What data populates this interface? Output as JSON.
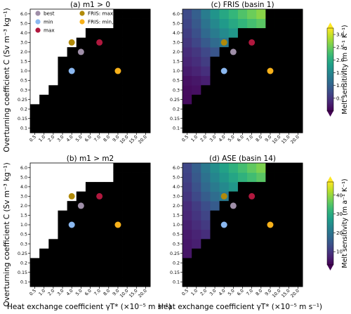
{
  "figure": {
    "shared_ylabel": "Overturning coefficient C (Sv m⁻³ kg⁻¹)",
    "shared_xlabel": "Heat exchange coefficient γT* (×10⁻⁵ m s⁻¹)"
  },
  "chart_data": [
    {
      "id": "a",
      "type": "heatmap",
      "title": "(a) m1 > 0",
      "x_ticks": [
        "0.5",
        "1.0",
        "2.0",
        "3.0",
        "4.0",
        "5.0",
        "6.0",
        "7.0",
        "8.0",
        "9.0",
        "10.0",
        "15.0",
        "20.0"
      ],
      "y_ticks": [
        "0.1",
        "0.15",
        "0.2",
        "0.25",
        "0.3",
        "0.5",
        "1.0",
        "1.5",
        "2.0",
        "3.0",
        "4.0",
        "5.0",
        "6.0"
      ],
      "mask_row_start": [
        3,
        4,
        5,
        8,
        9,
        10,
        11,
        11,
        11,
        13,
        13,
        13,
        13
      ],
      "mask_color": "#000000",
      "legend": [
        {
          "label": "best",
          "color": "#9f8fa8"
        },
        {
          "label": "min",
          "color": "#8bb8f0"
        },
        {
          "label": "max",
          "color": "#b0183e"
        },
        {
          "label": "FRIS: max, ASE: min",
          "color": "#b08a0a"
        },
        {
          "label": "FRIS: min, ASE: max",
          "color": "#f7b11a"
        }
      ],
      "points": [
        {
          "name": "best",
          "x": "5.0",
          "y": "2.0",
          "color": "#9f8fa8"
        },
        {
          "name": "min",
          "x": "4.0",
          "y": "1.0",
          "color": "#8bb8f0"
        },
        {
          "name": "max",
          "x": "7.0",
          "y": "3.0",
          "color": "#b0183e"
        },
        {
          "name": "FRIS: max, ASE: min",
          "x": "4.0",
          "y": "3.0",
          "color": "#b08a0a"
        },
        {
          "name": "FRIS: min, ASE: max",
          "x": "9.0",
          "y": "1.0",
          "color": "#f7b11a"
        }
      ]
    },
    {
      "id": "b",
      "type": "heatmap",
      "title": "(b) m1 > m2",
      "x_ticks": [
        "0.5",
        "1.0",
        "2.0",
        "3.0",
        "4.0",
        "5.0",
        "6.0",
        "7.0",
        "8.0",
        "9.0",
        "10.0",
        "15.0",
        "20.0"
      ],
      "y_ticks": [
        "0.1",
        "0.15",
        "0.2",
        "0.25",
        "0.3",
        "0.5",
        "1.0",
        "1.5",
        "2.0",
        "3.0",
        "4.0",
        "5.0",
        "6.0"
      ],
      "mask_row_start": [
        3,
        4,
        5,
        8,
        9,
        10,
        11,
        11,
        11,
        13,
        13,
        13,
        13
      ],
      "mask_color": "#000000",
      "points": [
        {
          "name": "best",
          "x": "5.0",
          "y": "2.0",
          "color": "#9f8fa8"
        },
        {
          "name": "min",
          "x": "4.0",
          "y": "1.0",
          "color": "#8bb8f0"
        },
        {
          "name": "max",
          "x": "7.0",
          "y": "3.0",
          "color": "#b0183e"
        },
        {
          "name": "FRIS: max, ASE: min",
          "x": "4.0",
          "y": "3.0",
          "color": "#b08a0a"
        },
        {
          "name": "FRIS: min, ASE: max",
          "x": "9.0",
          "y": "1.0",
          "color": "#f7b11a"
        }
      ]
    },
    {
      "id": "c",
      "type": "heatmap",
      "title": "(c) FRIS (basin 1)",
      "x_ticks": [
        "0.5",
        "1.0",
        "2.0",
        "3.0",
        "4.0",
        "5.0",
        "6.0",
        "7.0",
        "8.0",
        "9.0",
        "10.0",
        "15.0",
        "20.0"
      ],
      "y_ticks": [
        "0.1",
        "0.15",
        "0.2",
        "0.25",
        "0.3",
        "0.5",
        "1.0",
        "1.5",
        "2.0",
        "3.0",
        "4.0",
        "5.0",
        "6.0"
      ],
      "colorbar": {
        "label": "Melt sensitivity (m a⁻¹ K⁻¹)",
        "ticks": [
          0.5,
          1.0,
          1.5,
          2.0,
          2.5,
          3.0
        ],
        "min": 0,
        "max": 3.25
      },
      "values": [
        [
          0.06,
          0.08,
          0.1,
          0.12,
          0.13,
          0.14,
          0.15,
          0.16,
          0.17,
          0.18,
          0.19,
          0.22,
          0.25
        ],
        [
          0.07,
          0.09,
          0.12,
          0.14,
          0.16,
          0.17,
          0.18,
          0.19,
          0.2,
          0.21,
          0.22,
          0.26,
          0.3
        ],
        [
          0.08,
          0.1,
          0.14,
          0.17,
          0.19,
          0.2,
          0.22,
          0.23,
          0.24,
          0.25,
          0.26,
          0.3,
          0.34
        ],
        [
          0.09,
          0.12,
          0.16,
          0.19,
          0.22,
          0.24,
          0.26,
          0.27,
          0.28,
          0.29,
          0.3,
          0.35,
          0.4
        ],
        [
          0.1,
          0.14,
          0.19,
          0.23,
          0.26,
          0.28,
          0.3,
          0.32,
          0.33,
          0.34,
          0.35,
          0.4,
          0.45
        ],
        [
          0.15,
          0.2,
          0.28,
          0.34,
          0.38,
          0.42,
          0.45,
          0.48,
          0.5,
          0.52,
          0.55,
          0.62,
          0.7
        ],
        [
          0.25,
          0.32,
          0.44,
          0.53,
          0.6,
          0.66,
          0.72,
          0.77,
          0.8,
          0.84,
          0.88,
          1.0,
          1.1
        ],
        [
          0.33,
          0.43,
          0.58,
          0.7,
          0.8,
          0.88,
          0.95,
          1.02,
          1.08,
          1.12,
          1.17,
          1.35,
          1.5
        ],
        [
          0.4,
          0.52,
          0.7,
          0.85,
          0.97,
          1.07,
          1.16,
          1.24,
          1.31,
          1.38,
          1.44,
          1.65,
          1.85
        ],
        [
          0.52,
          0.68,
          0.92,
          1.12,
          1.28,
          1.42,
          1.54,
          1.65,
          1.75,
          1.84,
          1.92,
          2.22,
          2.45
        ],
        [
          0.6,
          0.8,
          1.1,
          1.35,
          1.55,
          1.72,
          1.87,
          2.0,
          2.12,
          2.23,
          2.33,
          2.7,
          3.0
        ],
        [
          0.67,
          0.9,
          1.24,
          1.52,
          1.75,
          1.95,
          2.12,
          2.27,
          2.4,
          2.53,
          2.65,
          3.05,
          3.25
        ],
        [
          0.72,
          0.98,
          1.36,
          1.68,
          1.93,
          2.15,
          2.34,
          2.51,
          2.66,
          2.8,
          2.93,
          3.2,
          3.25
        ]
      ],
      "mask_row_start": [
        3,
        4,
        5,
        8,
        9,
        10,
        11,
        11,
        11,
        13,
        13,
        13,
        13
      ],
      "mask_color": "#000000",
      "points": [
        {
          "name": "best",
          "x": "5.0",
          "y": "2.0",
          "color": "#9f8fa8"
        },
        {
          "name": "min",
          "x": "4.0",
          "y": "1.0",
          "color": "#8bb8f0"
        },
        {
          "name": "max",
          "x": "7.0",
          "y": "3.0",
          "color": "#b0183e"
        },
        {
          "name": "FRIS: max, ASE: min",
          "x": "4.0",
          "y": "3.0",
          "color": "#b08a0a"
        },
        {
          "name": "FRIS: min, ASE: max",
          "x": "9.0",
          "y": "1.0",
          "color": "#f7b11a"
        }
      ]
    },
    {
      "id": "d",
      "type": "heatmap",
      "title": "(d) ASE (basin 14)",
      "x_ticks": [
        "0.5",
        "1.0",
        "2.0",
        "3.0",
        "4.0",
        "5.0",
        "6.0",
        "7.0",
        "8.0",
        "9.0",
        "10.0",
        "15.0",
        "20.0"
      ],
      "y_ticks": [
        "0.1",
        "0.15",
        "0.2",
        "0.25",
        "0.3",
        "0.5",
        "1.0",
        "1.5",
        "2.0",
        "3.0",
        "4.0",
        "5.0",
        "6.0"
      ],
      "colorbar": {
        "label": "Melt sensitivity (m a⁻¹ K⁻¹)",
        "ticks": [
          10,
          20,
          30,
          40
        ],
        "min": 3,
        "max": 47
      },
      "values": [
        [
          5,
          5.5,
          6,
          6.5,
          7,
          7.5,
          8,
          8.5,
          9,
          9.5,
          10,
          11,
          12
        ],
        [
          5.2,
          5.8,
          6.5,
          7,
          7.5,
          8,
          8.6,
          9.2,
          9.8,
          10.4,
          11,
          12,
          13
        ],
        [
          5.4,
          6,
          7,
          7.6,
          8.2,
          8.8,
          9.4,
          10,
          10.6,
          11.2,
          11.8,
          13,
          14
        ],
        [
          5.6,
          6.4,
          7.4,
          8.2,
          8.8,
          9.5,
          10.2,
          10.8,
          11.4,
          12,
          12.6,
          14,
          15
        ],
        [
          5.8,
          6.8,
          7.8,
          8.8,
          9.6,
          10.3,
          11,
          11.6,
          12.2,
          12.8,
          13.4,
          15,
          16
        ],
        [
          6.2,
          7.4,
          8.8,
          10,
          11,
          11.8,
          12.6,
          13.3,
          14,
          14.6,
          15.2,
          17,
          18.5
        ],
        [
          7,
          8.6,
          10.5,
          12,
          13.2,
          14.3,
          15.3,
          16.2,
          17,
          17.8,
          18.5,
          21,
          23
        ],
        [
          7.8,
          9.8,
          12,
          13.8,
          15.3,
          16.6,
          17.8,
          18.9,
          19.9,
          20.8,
          21.7,
          25,
          27.5
        ],
        [
          8.5,
          10.8,
          13.4,
          15.6,
          17.4,
          19,
          20.4,
          21.7,
          22.9,
          24,
          25,
          29,
          32
        ],
        [
          9.8,
          12.6,
          15.8,
          18.6,
          20.9,
          23,
          24.8,
          26.5,
          28,
          29.4,
          30.7,
          35.5,
          39
        ],
        [
          10.8,
          14,
          17.8,
          21,
          23.8,
          26.2,
          28.3,
          30.3,
          32.1,
          33.7,
          35.2,
          40,
          43
        ],
        [
          11.6,
          15.2,
          19.4,
          23,
          26.1,
          28.8,
          31.2,
          33.4,
          35.4,
          37.2,
          38.9,
          43.5,
          46
        ],
        [
          12.2,
          16.1,
          20.7,
          24.6,
          28,
          31,
          33.6,
          36,
          38.2,
          40.2,
          42,
          45.5,
          47
        ]
      ],
      "white_cells": [
        [
          0,
          0
        ],
        [
          0,
          1
        ],
        [
          0,
          2
        ],
        [
          0,
          3
        ]
      ],
      "mask_row_start": [
        3,
        4,
        5,
        8,
        9,
        10,
        11,
        11,
        11,
        13,
        13,
        13,
        13
      ],
      "mask_color": "#000000",
      "points": [
        {
          "name": "best",
          "x": "5.0",
          "y": "2.0",
          "color": "#9f8fa8"
        },
        {
          "name": "min",
          "x": "4.0",
          "y": "1.0",
          "color": "#8bb8f0"
        },
        {
          "name": "max",
          "x": "7.0",
          "y": "3.0",
          "color": "#b0183e"
        },
        {
          "name": "FRIS: max, ASE: min",
          "x": "4.0",
          "y": "3.0",
          "color": "#b08a0a"
        },
        {
          "name": "FRIS: min, ASE: max",
          "x": "9.0",
          "y": "1.0",
          "color": "#f7b11a"
        }
      ]
    }
  ]
}
